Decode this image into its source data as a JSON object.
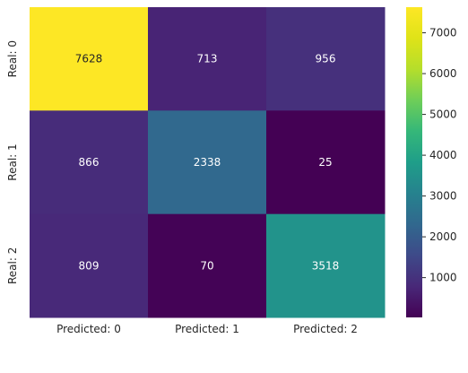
{
  "chart_data": {
    "type": "heatmap",
    "title": "",
    "xlabel": "",
    "ylabel": "",
    "x_categories": [
      "Predicted: 0",
      "Predicted: 1",
      "Predicted: 2"
    ],
    "y_categories": [
      "Real: 0",
      "Real: 1",
      "Real: 2"
    ],
    "values": [
      [
        7628,
        713,
        956
      ],
      [
        866,
        2338,
        25
      ],
      [
        809,
        70,
        3518
      ]
    ],
    "colormap": "viridis",
    "colorbar": {
      "range": [
        25,
        7628
      ],
      "ticks": [
        1000,
        2000,
        3000,
        4000,
        5000,
        6000,
        7000
      ],
      "tick_labels": [
        "1000",
        "2000",
        "3000",
        "4000",
        "5000",
        "6000",
        "7000"
      ]
    },
    "grid": false,
    "annotation_colors": {
      "on_dark": "#ffffff",
      "on_light": "#262626"
    }
  }
}
